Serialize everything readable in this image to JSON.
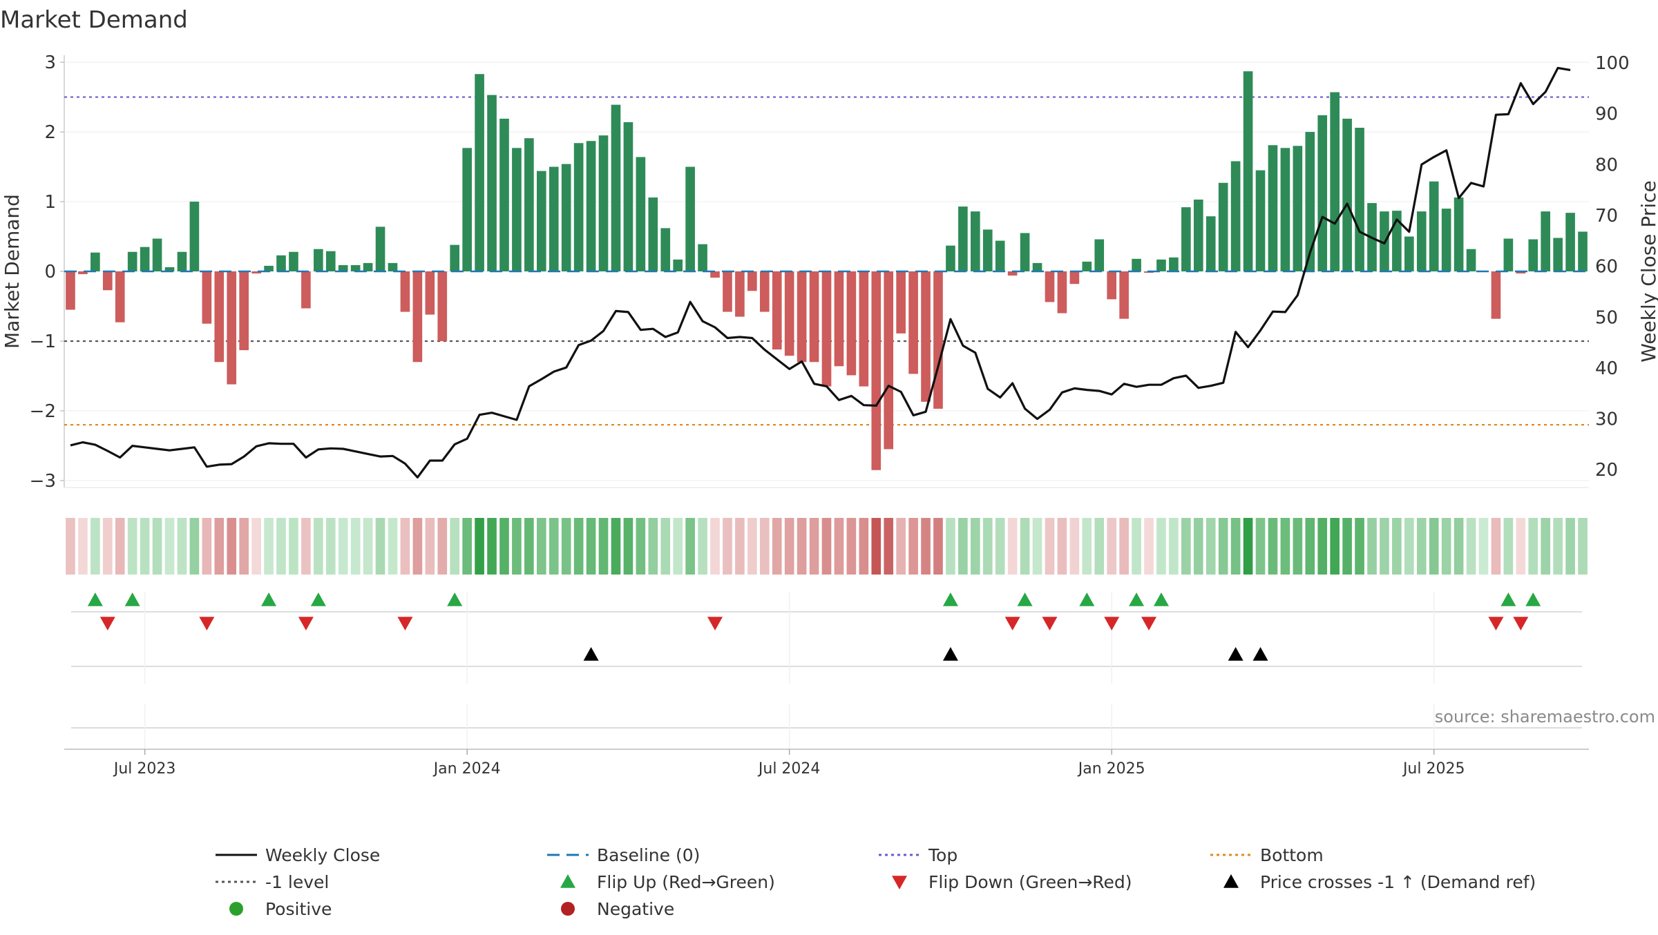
{
  "title": "Market Demand",
  "source": "source: sharemaestro.com",
  "chart_data": {
    "type": "bar",
    "y_left_label": "Market Demand",
    "y_right_label": "Weekly Close Price",
    "y_left_range": [
      -3.1,
      3.1
    ],
    "y_right_range": [
      16.5,
      101.5
    ],
    "y_left_ticks": [
      {
        "v": 3,
        "t": "3"
      },
      {
        "v": 2,
        "t": "2"
      },
      {
        "v": 1,
        "t": "1"
      },
      {
        "v": 0,
        "t": "0"
      },
      {
        "v": -1,
        "t": "−1"
      },
      {
        "v": -2,
        "t": "−2"
      },
      {
        "v": -3,
        "t": "−3"
      }
    ],
    "y_right_ticks": [
      20,
      30,
      40,
      50,
      60,
      70,
      80,
      90,
      100
    ],
    "x_ticks": [
      {
        "i": 6,
        "t": "Jul 2023"
      },
      {
        "i": 32,
        "t": "Jan 2024"
      },
      {
        "i": 58,
        "t": "Jul 2024"
      },
      {
        "i": 84,
        "t": "Jan 2025"
      },
      {
        "i": 110,
        "t": "Jul 2025"
      }
    ],
    "reference_lines": {
      "top": 2.5,
      "bottom": -2.2,
      "level": -1,
      "baseline": 0
    },
    "demand": [
      -0.55,
      -0.04,
      0.27,
      -0.27,
      -0.73,
      0.28,
      0.35,
      0.47,
      0.06,
      0.28,
      1.0,
      -0.75,
      -1.3,
      -1.62,
      -1.13,
      -0.03,
      0.08,
      0.23,
      0.28,
      -0.53,
      0.32,
      0.29,
      0.09,
      0.09,
      0.12,
      0.64,
      0.12,
      -0.58,
      -1.3,
      -0.62,
      -1.0,
      0.38,
      1.77,
      2.83,
      2.53,
      2.19,
      1.77,
      1.91,
      1.44,
      1.5,
      1.54,
      1.84,
      1.87,
      1.95,
      2.39,
      2.14,
      1.64,
      1.06,
      0.62,
      0.17,
      1.5,
      0.39,
      -0.09,
      -0.58,
      -0.65,
      -0.28,
      -0.58,
      -1.12,
      -1.21,
      -1.3,
      -1.3,
      -1.65,
      -1.36,
      -1.49,
      -1.65,
      -2.85,
      -2.55,
      -0.89,
      -1.47,
      -1.87,
      -1.97,
      0.37,
      0.93,
      0.86,
      0.6,
      0.44,
      -0.06,
      0.55,
      0.12,
      -0.44,
      -0.6,
      -0.18,
      0.14,
      0.46,
      -0.4,
      -0.68,
      0.18,
      -0.02,
      0.17,
      0.2,
      0.92,
      1.03,
      0.79,
      1.27,
      1.58,
      2.87,
      1.45,
      1.81,
      1.77,
      1.8,
      2.0,
      2.24,
      2.57,
      2.19,
      2.06,
      0.98,
      0.86,
      0.87,
      0.5,
      0.86,
      1.29,
      0.9,
      1.06,
      0.32,
      0.0,
      -0.68,
      0.47,
      -0.03,
      0.46,
      0.86,
      0.48,
      0.84,
      0.57
    ],
    "weekly_close": [
      24.8,
      25.4,
      24.9,
      23.7,
      22.4,
      24.7,
      24.4,
      24.1,
      23.8,
      24.1,
      24.4,
      20.6,
      21.0,
      21.1,
      22.6,
      24.6,
      25.2,
      25.1,
      25.1,
      22.4,
      24.0,
      24.2,
      24.1,
      23.6,
      23.1,
      22.6,
      22.7,
      21.2,
      18.5,
      21.8,
      21.8,
      25.0,
      26.1,
      30.8,
      31.2,
      30.5,
      29.8,
      36.4,
      37.8,
      39.3,
      40.1,
      44.5,
      45.4,
      47.3,
      51.2,
      51.0,
      47.5,
      47.7,
      46.1,
      47.0,
      53.0,
      49.2,
      48.0,
      45.9,
      46.1,
      45.9,
      43.6,
      41.7,
      39.8,
      41.3,
      36.9,
      36.4,
      33.7,
      34.5,
      32.7,
      32.6,
      36.5,
      35.3,
      30.7,
      31.4,
      40.3,
      49.6,
      44.4,
      43.0,
      35.9,
      34.2,
      37.0,
      32.0,
      30.0,
      31.8,
      35.2,
      36.0,
      35.7,
      35.5,
      34.8,
      36.9,
      36.3,
      36.7,
      36.7,
      38.0,
      38.5,
      36.1,
      36.5,
      37.1,
      47.1,
      44.1,
      47.4,
      51.1,
      51.0,
      54.3,
      62.7,
      69.7,
      68.4,
      72.3,
      66.8,
      65.6,
      64.5,
      69.2,
      66.8,
      80.0,
      81.5,
      82.8,
      73.4,
      76.4,
      75.7,
      89.8,
      89.9,
      96.0,
      91.9,
      94.3,
      99.0,
      98.6
    ]
  },
  "legend": [
    {
      "label": "Weekly Close",
      "type": "line",
      "color": "#111111",
      "dash": ""
    },
    {
      "label": "Baseline (0)",
      "type": "line",
      "color": "#1f77b4",
      "dash": "18 10"
    },
    {
      "label": "Top",
      "type": "line",
      "color": "#6a5acd",
      "dash": "4 5"
    },
    {
      "label": "Bottom",
      "type": "line",
      "color": "#e08a1e",
      "dash": "4 5"
    },
    {
      "label": "-1 level",
      "type": "line",
      "color": "#555555",
      "dash": "4 5"
    },
    {
      "label": "Flip Up (Red→Green)",
      "type": "tri-up",
      "color": "#28a745"
    },
    {
      "label": "Flip Down (Green→Red)",
      "type": "tri-down",
      "color": "#d62728"
    },
    {
      "label": "Price crosses -1 ↑ (Demand ref)",
      "type": "tri-up",
      "color": "#000000"
    },
    {
      "label": "Positive",
      "type": "dot",
      "color": "#2ca02c"
    },
    {
      "label": "Negative",
      "type": "dot",
      "color": "#b22222"
    }
  ],
  "colors": {
    "positive": "#2e8b57",
    "negative": "#cd5c5c",
    "flip_up": "#28a745",
    "flip_down": "#d62728",
    "price_cross": "#000000",
    "price_line": "#111111",
    "top": "#6a5acd",
    "bottom": "#e08a1e",
    "level": "#555555",
    "baseline": "#1f77b4"
  }
}
